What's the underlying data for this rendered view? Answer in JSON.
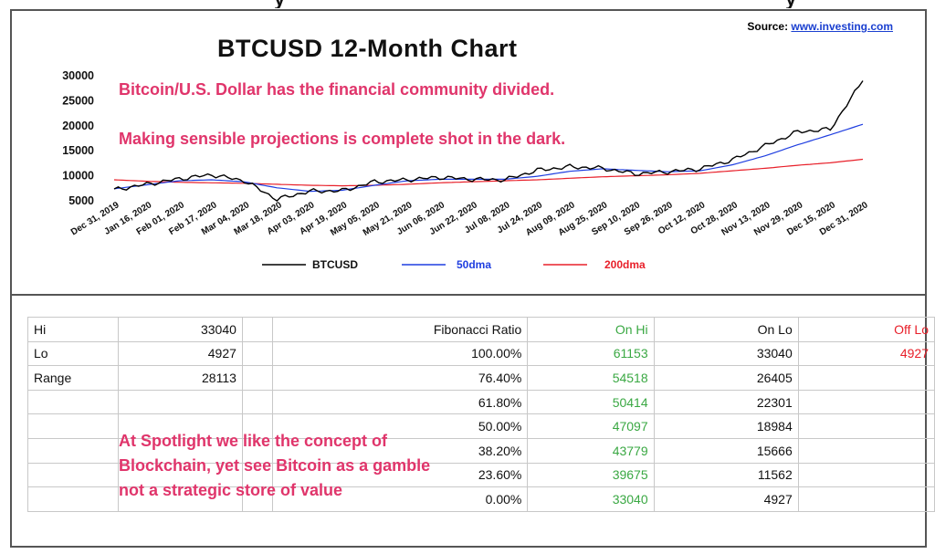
{
  "source": {
    "label": "Source:",
    "link": "www.investing.com"
  },
  "chart_data": {
    "type": "line",
    "title": "BTCUSD 12-Month Chart",
    "xlabel": "",
    "ylabel": "",
    "ylim": [
      5000,
      30000
    ],
    "y_ticks": [
      30000,
      25000,
      20000,
      15000,
      10000,
      5000
    ],
    "x_ticks": [
      "Dec 31, 2019",
      "Jan 16, 2020",
      "Feb 01, 2020",
      "Feb 17, 2020",
      "Mar 04, 2020",
      "Mar 18, 2020",
      "Apr 03, 2020",
      "Apr 19, 2020",
      "May 05, 2020",
      "May 21, 2020",
      "Jun 06, 2020",
      "Jun 22, 2020",
      "Jul 08, 2020",
      "Jul 24, 2020",
      "Aug 09, 2020",
      "Aug 25, 2020",
      "Sep 10, 2020",
      "Sep 26, 2020",
      "Oct 12, 2020",
      "Oct 28, 2020",
      "Nov 13, 2020",
      "Nov 29, 2020",
      "Dec 15, 2020",
      "Dec 31, 2020"
    ],
    "grid": false,
    "legend_position": "bottom",
    "series": [
      {
        "name": "BTCUSD",
        "color": "#000000",
        "values": [
          7200,
          8300,
          9400,
          10200,
          9000,
          5300,
          6900,
          7000,
          8800,
          9200,
          9700,
          9300,
          9200,
          11100,
          11800,
          11500,
          10400,
          10800,
          11400,
          13200,
          16000,
          18800,
          19300,
          29000
        ]
      },
      {
        "name": "50dma",
        "color": "#1f3ee0",
        "values": [
          7400,
          8200,
          9000,
          9200,
          8800,
          7600,
          6900,
          7100,
          8100,
          9000,
          9300,
          9300,
          9300,
          9900,
          10900,
          11400,
          11100,
          10800,
          11000,
          12200,
          14000,
          16200,
          18200,
          20300
        ]
      },
      {
        "name": "200dma",
        "color": "#e8202a",
        "values": [
          9200,
          8900,
          8700,
          8600,
          8500,
          8300,
          8100,
          8000,
          8100,
          8300,
          8600,
          8800,
          9000,
          9200,
          9500,
          9800,
          10000,
          10200,
          10500,
          11000,
          11500,
          12100,
          12600,
          13300
        ]
      }
    ]
  },
  "annotations": {
    "line1": "Bitcoin/U.S. Dollar has the financial community divided.",
    "line2": "Making sensible projections is complete shot in the dark.",
    "line3": "At Spotlight we like the concept of",
    "line4": "Blockchain, yet see Bitcoin as a gamble",
    "line5": "not a strategic store of value"
  },
  "table": {
    "rows": [
      [
        "Hi",
        "33040",
        "",
        "Fibonacci  Ratio",
        "On Hi",
        "On Lo",
        "Off Lo"
      ],
      [
        "Lo",
        "4927",
        "",
        "100.00%",
        "61153",
        "33040",
        "4927"
      ],
      [
        "Range",
        "28113",
        "",
        "76.40%",
        "54518",
        "26405",
        ""
      ],
      [
        "",
        "",
        "",
        "61.80%",
        "50414",
        "22301",
        ""
      ],
      [
        "",
        "",
        "",
        "50.00%",
        "47097",
        "18984",
        ""
      ],
      [
        "",
        "",
        "",
        "38.20%",
        "43779",
        "15666",
        ""
      ],
      [
        "",
        "",
        "",
        "23.60%",
        "39675",
        "11562",
        ""
      ],
      [
        "",
        "",
        "",
        "0.00%",
        "33040",
        "4927",
        ""
      ]
    ]
  },
  "colors": {
    "annotation": "#e0356b",
    "on_hi": "#3aa843",
    "off_lo": "#e8202a"
  }
}
